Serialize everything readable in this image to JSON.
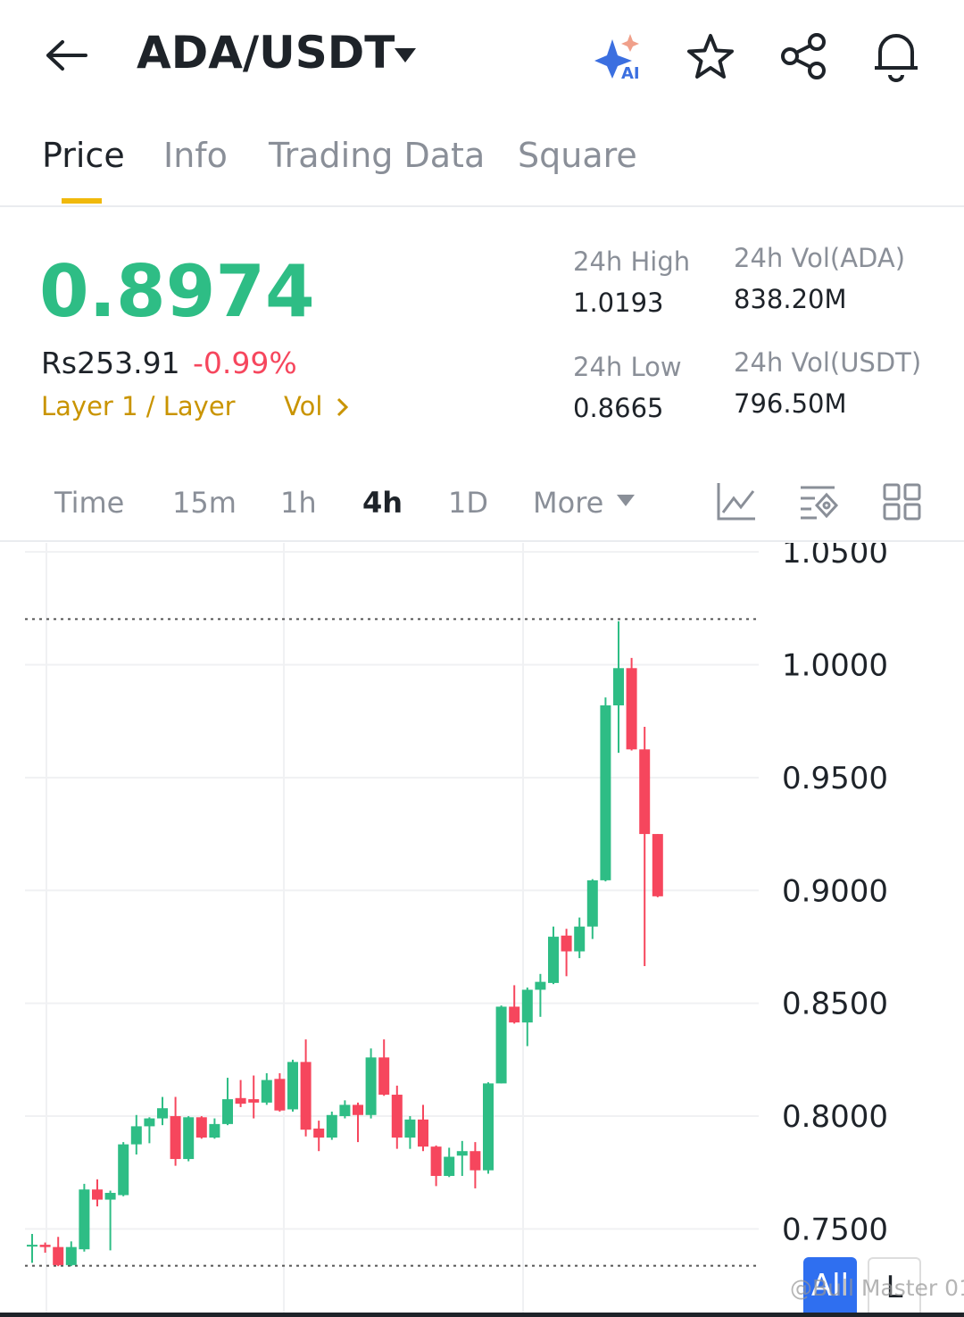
{
  "header": {
    "pair": "ADA/USDT"
  },
  "tabs": [
    "Price",
    "Info",
    "Trading Data",
    "Square"
  ],
  "price": {
    "last": "0.8974",
    "fiat": "Rs253.91",
    "change": "-0.99%",
    "tags": [
      "Layer 1 / Layer",
      "Vol"
    ]
  },
  "stats": [
    {
      "label": "24h High",
      "value": "1.0193"
    },
    {
      "label": "24h Vol(ADA)",
      "value": "838.20M"
    },
    {
      "label": "24h Low",
      "value": "0.8665"
    },
    {
      "label": "24h Vol(USDT)",
      "value": "796.50M"
    }
  ],
  "intervals": [
    "Time",
    "15m",
    "1h",
    "4h",
    "1D",
    "More"
  ],
  "buttons": [
    "All",
    "L"
  ],
  "watermark": "@Bull Master 01",
  "chart_data": {
    "type": "candlestick",
    "ylim": [
      0.711,
      1.054
    ],
    "yticks": [
      {
        "value": 1.05,
        "label": "1.0500"
      },
      {
        "value": 1.0,
        "label": "1.0000"
      },
      {
        "value": 0.95,
        "label": "0.9500"
      },
      {
        "value": 0.9,
        "label": "0.9000"
      },
      {
        "value": 0.85,
        "label": "0.8500"
      },
      {
        "value": 0.8,
        "label": "0.8000"
      },
      {
        "value": 0.75,
        "label": "0.7500"
      }
    ],
    "grid": true,
    "up_color": "#2ebd85",
    "down_color": "#f6465d",
    "dotted_lines": [
      1.0202,
      0.7337
    ],
    "open": [
      0.7425,
      0.743,
      0.742,
      0.734,
      0.741,
      0.7675,
      0.763,
      0.765,
      0.7875,
      0.7955,
      0.799,
      0.8,
      0.781,
      0.7995,
      0.7905,
      0.7965,
      0.808,
      0.8075,
      0.806,
      0.8165,
      0.803,
      0.824,
      0.7945,
      0.7905,
      0.8,
      0.805,
      0.8005,
      0.826,
      0.8095,
      0.7905,
      0.7985,
      0.7865,
      0.7735,
      0.7825,
      0.7845,
      0.776,
      0.8145,
      0.8485,
      0.8415,
      0.856,
      0.859,
      0.88,
      0.873,
      0.884,
      0.9045,
      0.982,
      0.9985,
      0.9625,
      0.925
    ],
    "high": [
      0.7478,
      0.744,
      0.7465,
      0.7445,
      0.77,
      0.772,
      0.767,
      0.7885,
      0.8005,
      0.7995,
      0.8085,
      0.8085,
      0.8,
      0.8,
      0.799,
      0.817,
      0.816,
      0.818,
      0.819,
      0.819,
      0.825,
      0.834,
      0.798,
      0.802,
      0.807,
      0.806,
      0.83,
      0.834,
      0.8135,
      0.8,
      0.805,
      0.787,
      0.786,
      0.789,
      0.7885,
      0.815,
      0.849,
      0.858,
      0.857,
      0.863,
      0.884,
      0.883,
      0.888,
      0.905,
      0.9855,
      1.0193,
      1.003,
      0.9725,
      0.925
    ],
    "low": [
      0.735,
      0.7395,
      0.7335,
      0.7335,
      0.74,
      0.76,
      0.7405,
      0.7645,
      0.783,
      0.788,
      0.796,
      0.778,
      0.78,
      0.79,
      0.79,
      0.796,
      0.804,
      0.799,
      0.805,
      0.802,
      0.802,
      0.791,
      0.7845,
      0.7895,
      0.799,
      0.7885,
      0.799,
      0.809,
      0.7855,
      0.7855,
      0.7845,
      0.769,
      0.773,
      0.7735,
      0.768,
      0.7745,
      0.8145,
      0.841,
      0.831,
      0.844,
      0.8585,
      0.862,
      0.87,
      0.8785,
      0.904,
      0.961,
      0.962,
      0.8665,
      0.897
    ],
    "close": [
      0.743,
      0.742,
      0.734,
      0.742,
      0.7675,
      0.763,
      0.766,
      0.7875,
      0.7955,
      0.799,
      0.8035,
      0.781,
      0.7995,
      0.7905,
      0.7965,
      0.8075,
      0.8055,
      0.806,
      0.816,
      0.8025,
      0.824,
      0.794,
      0.7905,
      0.8005,
      0.805,
      0.8005,
      0.826,
      0.8095,
      0.7905,
      0.7985,
      0.7865,
      0.7735,
      0.782,
      0.7845,
      0.776,
      0.8145,
      0.8485,
      0.8415,
      0.856,
      0.8595,
      0.8795,
      0.873,
      0.884,
      0.9045,
      0.982,
      0.9985,
      0.9625,
      0.925,
      0.8974
    ]
  }
}
